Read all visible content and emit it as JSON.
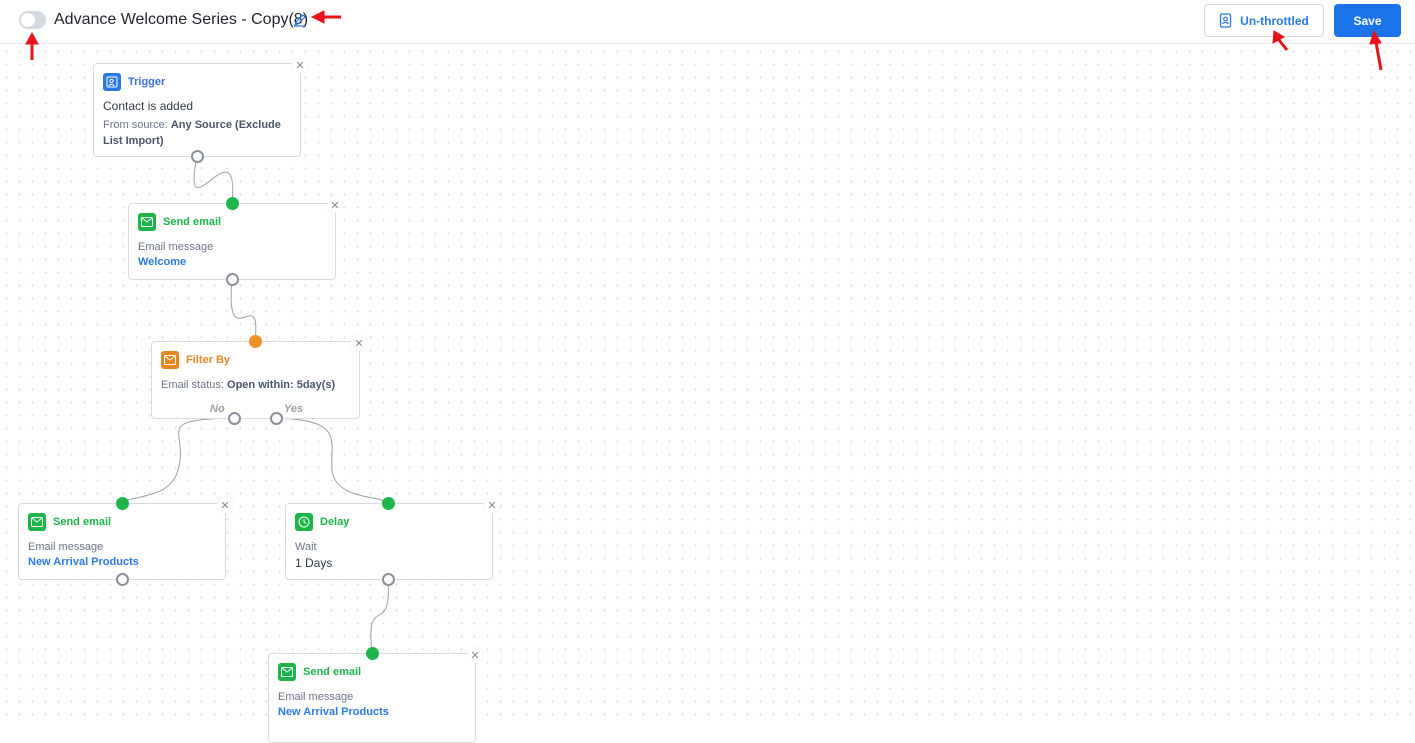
{
  "header": {
    "title": "Advance Welcome Series - Copy(8)",
    "toggle_on": false,
    "unthrottled_label": "Un-throttled",
    "save_label": "Save"
  },
  "colors": {
    "primary": "#1a73e8",
    "success": "#1db44a",
    "warning": "#f0922b"
  },
  "nodes": {
    "trigger": {
      "type": "Trigger",
      "title": "Contact is added",
      "prefix": "From source:",
      "source": "Any Source (Exclude List Import)",
      "icon": "contact-add-icon"
    },
    "send1": {
      "type": "Send email",
      "label": "Email message",
      "value": "Welcome",
      "icon": "email-icon"
    },
    "filter": {
      "type": "Filter By",
      "prefix": "Email status:",
      "condition": "Open within:",
      "value": "5day(s)",
      "no": "No",
      "yes": "Yes",
      "icon": "filter-email-icon"
    },
    "send2": {
      "type": "Send email",
      "label": "Email message",
      "value": "New Arrival Products",
      "icon": "email-icon"
    },
    "delay": {
      "type": "Delay",
      "label": "Wait",
      "value": "1 Days",
      "icon": "clock-icon"
    },
    "send3": {
      "type": "Send email",
      "label": "Email message",
      "value": "New Arrival Products",
      "icon": "email-icon"
    }
  }
}
